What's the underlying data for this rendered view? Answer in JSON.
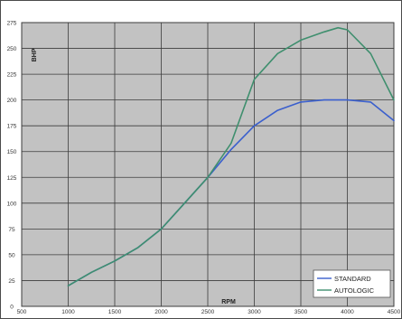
{
  "chart_data": {
    "type": "line",
    "xlabel": "RPM",
    "ylabel": "BHP",
    "xlim": [
      500,
      4500
    ],
    "ylim": [
      0,
      275
    ],
    "x_ticks": [
      500,
      1000,
      1500,
      2000,
      2500,
      3000,
      3500,
      4000,
      4500
    ],
    "y_ticks": [
      0,
      25,
      50,
      75,
      100,
      125,
      150,
      175,
      200,
      225,
      250,
      275
    ],
    "grid": true,
    "legend_position": "bottom-right",
    "series": [
      {
        "name": "STANDARD",
        "color": "#3a5fcd",
        "x": [
          1000,
          1250,
          1500,
          1750,
          2000,
          2250,
          2500,
          2750,
          3000,
          3250,
          3500,
          3750,
          4000,
          4250,
          4500
        ],
        "y": [
          20,
          33,
          44,
          57,
          75,
          100,
          125,
          152,
          175,
          190,
          198,
          200,
          200,
          198,
          180
        ]
      },
      {
        "name": "AUTOLOGIC",
        "color": "#3f8f6e",
        "x": [
          1000,
          1250,
          1500,
          1750,
          2000,
          2250,
          2500,
          2750,
          3000,
          3250,
          3500,
          3750,
          3900,
          4000,
          4250,
          4500
        ],
        "y": [
          20,
          33,
          44,
          57,
          75,
          100,
          125,
          158,
          220,
          245,
          258,
          266,
          270,
          268,
          245,
          200
        ]
      }
    ]
  }
}
